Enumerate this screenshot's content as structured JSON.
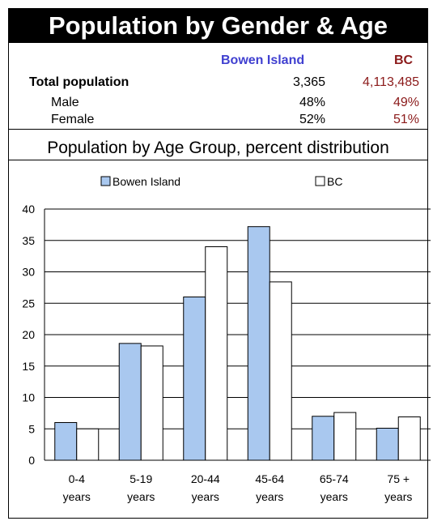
{
  "header": {
    "title": "Population by Gender & Age"
  },
  "table": {
    "columns": [
      "Bowen Island",
      "BC"
    ],
    "column_colors": [
      "#4040d0",
      "#8b1a1a"
    ],
    "rows": [
      {
        "label": "Total population",
        "values": [
          "3,365",
          "4,113,485"
        ]
      },
      {
        "label": "Male",
        "values": [
          "48%",
          "49%"
        ]
      },
      {
        "label": "Female",
        "values": [
          "52%",
          "51%"
        ]
      }
    ]
  },
  "chart_data": {
    "type": "bar",
    "title": "Population by Age Group, percent distribution",
    "categories": [
      [
        "0-4",
        "years"
      ],
      [
        "5-19",
        "years"
      ],
      [
        "20-44",
        "years"
      ],
      [
        "45-64",
        "years"
      ],
      [
        "65-74",
        "years"
      ],
      [
        "75 +",
        "years"
      ]
    ],
    "series": [
      {
        "name": "Bowen Island",
        "values": [
          6,
          18.6,
          26,
          37.2,
          7,
          5.1
        ],
        "color": "#a9c8ef"
      },
      {
        "name": "BC",
        "values": [
          5,
          18.2,
          34,
          28.4,
          7.6,
          6.9
        ],
        "color": "#ffffff"
      }
    ],
    "ylim": [
      0,
      40
    ],
    "yticks": [
      0,
      5,
      10,
      15,
      20,
      25,
      30,
      35,
      40
    ],
    "grid": true,
    "legend": "top"
  }
}
